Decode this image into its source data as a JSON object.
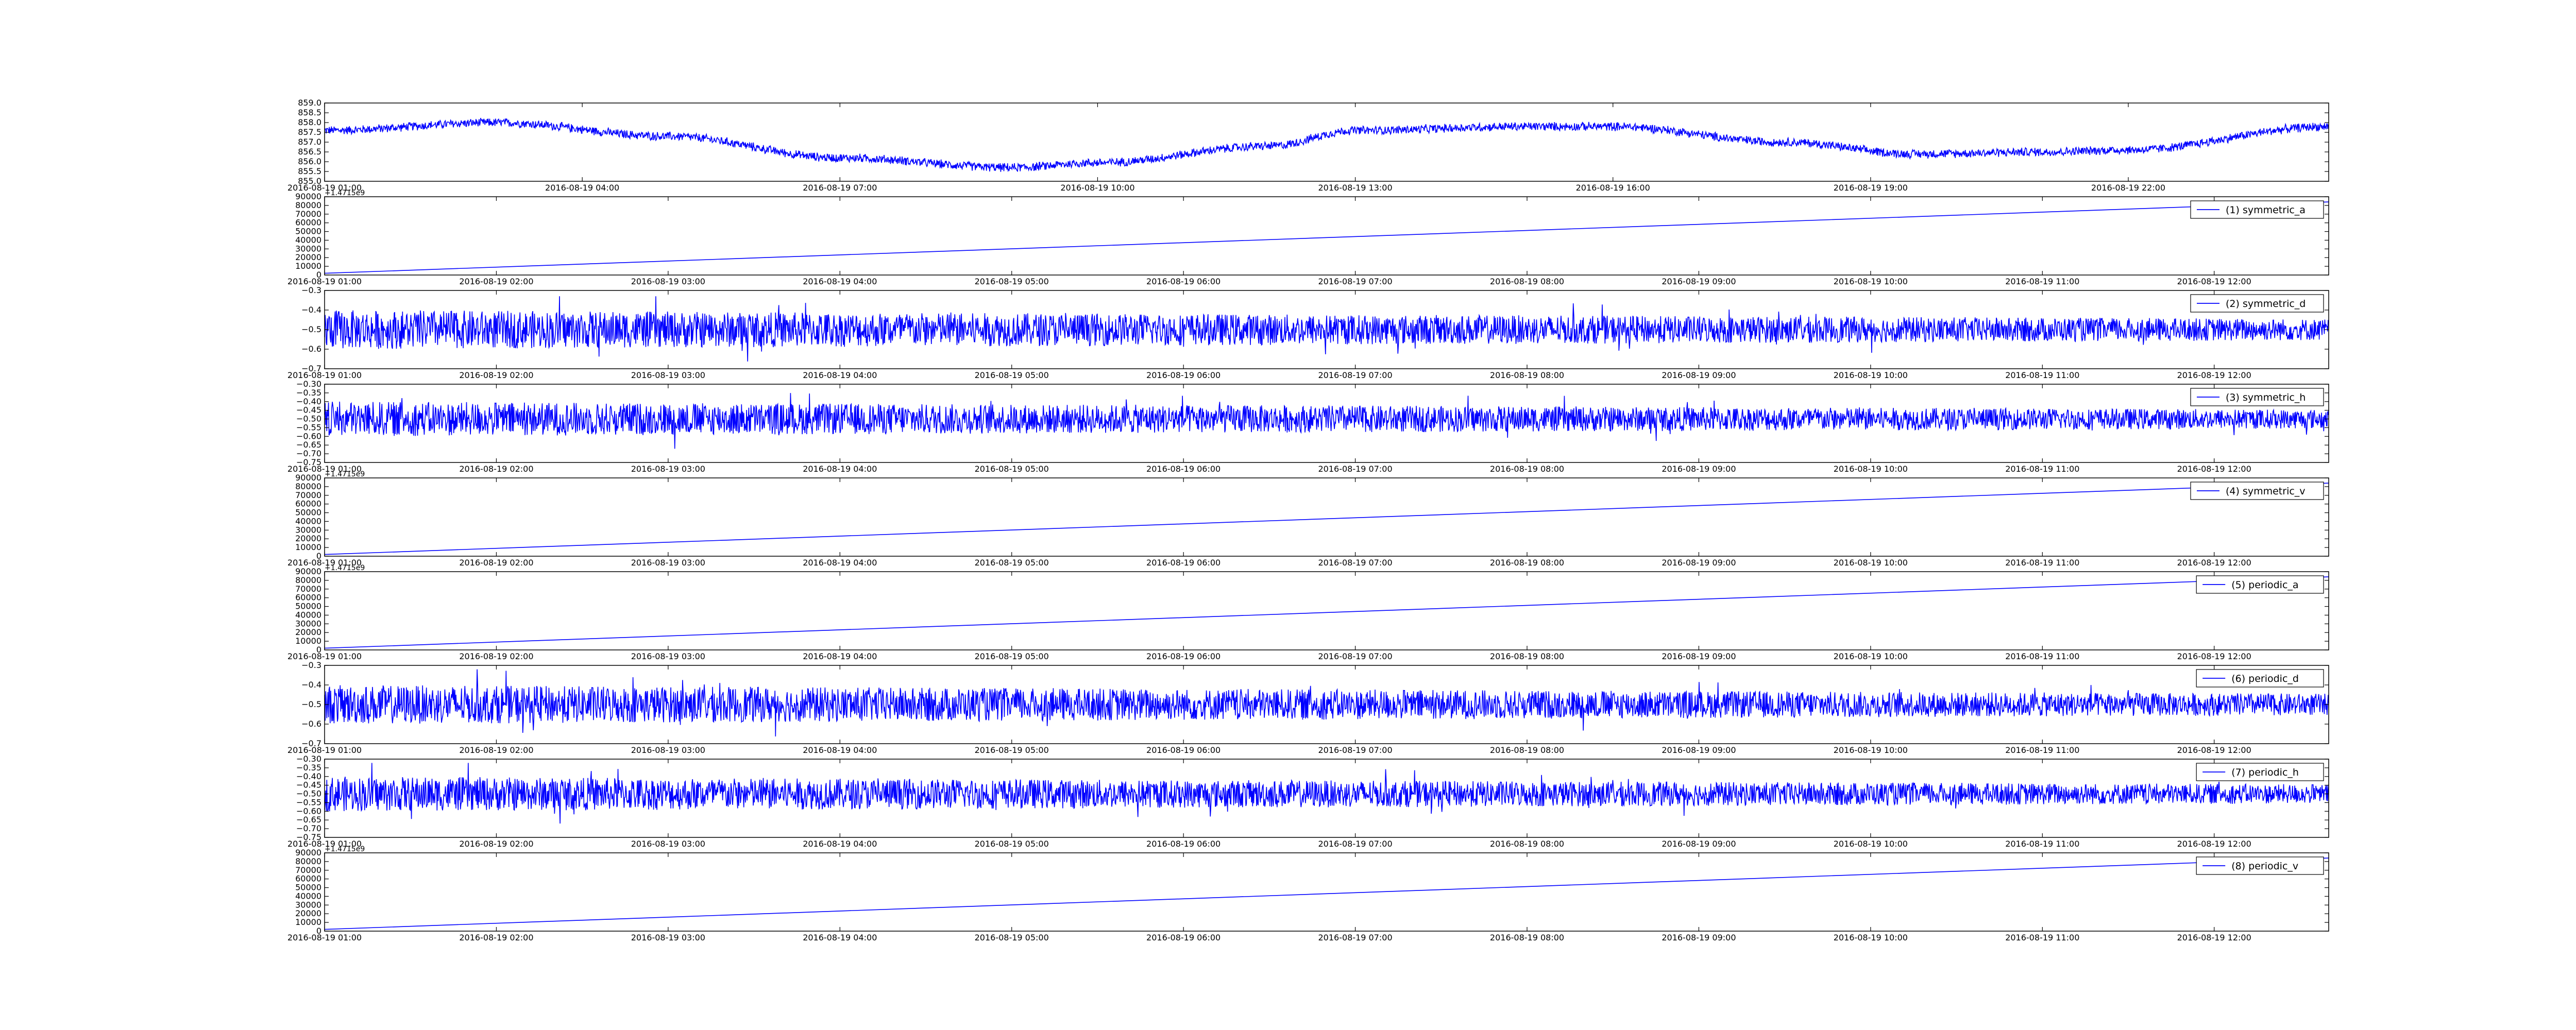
{
  "colors": {
    "series": "#0000ff",
    "axes": "#000000",
    "background": "#ffffff"
  },
  "chart_data": [
    {
      "type": "line",
      "ylim": [
        855.0,
        859.0
      ],
      "ytick_labels": [
        "855.0",
        "855.5",
        "856.0",
        "856.5",
        "857.0",
        "857.5",
        "858.0",
        "858.5",
        "859.0"
      ],
      "xtick_labels": [
        "2016-08-19 01:00",
        "2016-08-19 04:00",
        "2016-08-19 07:00",
        "2016-08-19 10:00",
        "2016-08-19 13:00",
        "2016-08-19 16:00",
        "2016-08-19 19:00",
        "2016-08-19 22:00"
      ],
      "xlim": [
        "2016-08-19 01:00",
        "2016-08-20 00:20"
      ],
      "series": [
        {
          "trend": {
            "x": [
              "2016-08-19 01:00",
              "2016-08-19 03:00",
              "2016-08-19 05:00",
              "2016-08-19 07:00",
              "2016-08-19 09:00",
              "2016-08-19 10:00",
              "2016-08-19 12:00",
              "2016-08-19 13:00",
              "2016-08-19 15:00",
              "2016-08-19 16:00",
              "2016-08-19 18:00",
              "2016-08-19 19:30",
              "2016-08-19 21:00",
              "2016-08-19 22:00",
              "2016-08-20 00:20"
            ],
            "y": [
              857.6,
              858.0,
              857.3,
              856.2,
              855.7,
              855.95,
              856.8,
              857.6,
              857.8,
              857.8,
              857.0,
              856.4,
              856.5,
              856.6,
              857.8
            ]
          },
          "noise_amplitude": 0.25
        }
      ]
    },
    {
      "type": "line",
      "ylim": [
        0,
        90000
      ],
      "offset_label": "+1.4715e9",
      "ytick_labels": [
        "0",
        "10000",
        "20000",
        "30000",
        "40000",
        "50000",
        "60000",
        "70000",
        "80000",
        "90000"
      ],
      "xtick_labels": [
        "2016-08-19 01:00",
        "2016-08-19 02:00",
        "2016-08-19 03:00",
        "2016-08-19 04:00",
        "2016-08-19 05:00",
        "2016-08-19 06:00",
        "2016-08-19 07:00",
        "2016-08-19 08:00",
        "2016-08-19 09:00",
        "2016-08-19 10:00",
        "2016-08-19 11:00",
        "2016-08-19 12:00"
      ],
      "xlim": [
        "2016-08-19 01:00",
        "2016-08-19 12:40"
      ],
      "series": [
        {
          "name": "(1) symmetric_a",
          "x": [
            "2016-08-19 01:00",
            "2016-08-19 12:40"
          ],
          "y": [
            2000,
            84000
          ]
        }
      ]
    },
    {
      "type": "line",
      "ylim": [
        -0.7,
        -0.3
      ],
      "ytick_labels": [
        "−0.7",
        "−0.6",
        "−0.5",
        "−0.4",
        "−0.3"
      ],
      "xtick_labels": [
        "2016-08-19 01:00",
        "2016-08-19 02:00",
        "2016-08-19 03:00",
        "2016-08-19 04:00",
        "2016-08-19 05:00",
        "2016-08-19 06:00",
        "2016-08-19 07:00",
        "2016-08-19 08:00",
        "2016-08-19 09:00",
        "2016-08-19 10:00",
        "2016-08-19 11:00",
        "2016-08-19 12:00"
      ],
      "xlim": [
        "2016-08-19 01:00",
        "2016-08-19 12:40"
      ],
      "series": [
        {
          "name": "(2) symmetric_d",
          "baseline": -0.5,
          "noise_amplitude": 0.1
        }
      ]
    },
    {
      "type": "line",
      "ylim": [
        -0.75,
        -0.3
      ],
      "ytick_labels": [
        "−0.75",
        "−0.70",
        "−0.65",
        "−0.60",
        "−0.55",
        "−0.50",
        "−0.45",
        "−0.40",
        "−0.35",
        "−0.30"
      ],
      "xtick_labels": [
        "2016-08-19 01:00",
        "2016-08-19 02:00",
        "2016-08-19 03:00",
        "2016-08-19 04:00",
        "2016-08-19 05:00",
        "2016-08-19 06:00",
        "2016-08-19 07:00",
        "2016-08-19 08:00",
        "2016-08-19 09:00",
        "2016-08-19 10:00",
        "2016-08-19 11:00",
        "2016-08-19 12:00"
      ],
      "xlim": [
        "2016-08-19 01:00",
        "2016-08-19 12:40"
      ],
      "series": [
        {
          "name": "(3) symmetric_h",
          "baseline": -0.5,
          "noise_amplitude": 0.1
        }
      ]
    },
    {
      "type": "line",
      "ylim": [
        0,
        90000
      ],
      "offset_label": "+1.4715e9",
      "ytick_labels": [
        "0",
        "10000",
        "20000",
        "30000",
        "40000",
        "50000",
        "60000",
        "70000",
        "80000",
        "90000"
      ],
      "xtick_labels": [
        "2016-08-19 01:00",
        "2016-08-19 02:00",
        "2016-08-19 03:00",
        "2016-08-19 04:00",
        "2016-08-19 05:00",
        "2016-08-19 06:00",
        "2016-08-19 07:00",
        "2016-08-19 08:00",
        "2016-08-19 09:00",
        "2016-08-19 10:00",
        "2016-08-19 11:00",
        "2016-08-19 12:00"
      ],
      "xlim": [
        "2016-08-19 01:00",
        "2016-08-19 12:40"
      ],
      "series": [
        {
          "name": "(4) symmetric_v",
          "x": [
            "2016-08-19 01:00",
            "2016-08-19 12:40"
          ],
          "y": [
            2000,
            84000
          ]
        }
      ]
    },
    {
      "type": "line",
      "ylim": [
        0,
        90000
      ],
      "offset_label": "+1.4715e9",
      "ytick_labels": [
        "0",
        "10000",
        "20000",
        "30000",
        "40000",
        "50000",
        "60000",
        "70000",
        "80000",
        "90000"
      ],
      "xtick_labels": [
        "2016-08-19 01:00",
        "2016-08-19 02:00",
        "2016-08-19 03:00",
        "2016-08-19 04:00",
        "2016-08-19 05:00",
        "2016-08-19 06:00",
        "2016-08-19 07:00",
        "2016-08-19 08:00",
        "2016-08-19 09:00",
        "2016-08-19 10:00",
        "2016-08-19 11:00",
        "2016-08-19 12:00"
      ],
      "xlim": [
        "2016-08-19 01:00",
        "2016-08-19 12:40"
      ],
      "series": [
        {
          "name": "(5) periodic_a",
          "x": [
            "2016-08-19 01:00",
            "2016-08-19 12:40"
          ],
          "y": [
            2000,
            84000
          ]
        }
      ]
    },
    {
      "type": "line",
      "ylim": [
        -0.7,
        -0.3
      ],
      "ytick_labels": [
        "−0.7",
        "−0.6",
        "−0.5",
        "−0.4",
        "−0.3"
      ],
      "xtick_labels": [
        "2016-08-19 01:00",
        "2016-08-19 02:00",
        "2016-08-19 03:00",
        "2016-08-19 04:00",
        "2016-08-19 05:00",
        "2016-08-19 06:00",
        "2016-08-19 07:00",
        "2016-08-19 08:00",
        "2016-08-19 09:00",
        "2016-08-19 10:00",
        "2016-08-19 11:00",
        "2016-08-19 12:00"
      ],
      "xlim": [
        "2016-08-19 01:00",
        "2016-08-19 12:40"
      ],
      "series": [
        {
          "name": "(6) periodic_d",
          "baseline": -0.5,
          "noise_amplitude": 0.1
        }
      ]
    },
    {
      "type": "line",
      "ylim": [
        -0.75,
        -0.3
      ],
      "ytick_labels": [
        "−0.75",
        "−0.70",
        "−0.65",
        "−0.60",
        "−0.55",
        "−0.50",
        "−0.45",
        "−0.40",
        "−0.35",
        "−0.30"
      ],
      "xtick_labels": [
        "2016-08-19 01:00",
        "2016-08-19 02:00",
        "2016-08-19 03:00",
        "2016-08-19 04:00",
        "2016-08-19 05:00",
        "2016-08-19 06:00",
        "2016-08-19 07:00",
        "2016-08-19 08:00",
        "2016-08-19 09:00",
        "2016-08-19 10:00",
        "2016-08-19 11:00",
        "2016-08-19 12:00"
      ],
      "xlim": [
        "2016-08-19 01:00",
        "2016-08-19 12:40"
      ],
      "series": [
        {
          "name": "(7) periodic_h",
          "baseline": -0.5,
          "noise_amplitude": 0.1
        }
      ]
    },
    {
      "type": "line",
      "ylim": [
        0,
        90000
      ],
      "offset_label": "+1.4715e9",
      "ytick_labels": [
        "0",
        "10000",
        "20000",
        "30000",
        "40000",
        "50000",
        "60000",
        "70000",
        "80000",
        "90000"
      ],
      "xtick_labels": [
        "2016-08-19 01:00",
        "2016-08-19 02:00",
        "2016-08-19 03:00",
        "2016-08-19 04:00",
        "2016-08-19 05:00",
        "2016-08-19 06:00",
        "2016-08-19 07:00",
        "2016-08-19 08:00",
        "2016-08-19 09:00",
        "2016-08-19 10:00",
        "2016-08-19 11:00",
        "2016-08-19 12:00"
      ],
      "xlim": [
        "2016-08-19 01:00",
        "2016-08-19 12:40"
      ],
      "series": [
        {
          "name": "(8) periodic_v",
          "x": [
            "2016-08-19 01:00",
            "2016-08-19 12:40"
          ],
          "y": [
            2000,
            84000
          ]
        }
      ]
    }
  ]
}
